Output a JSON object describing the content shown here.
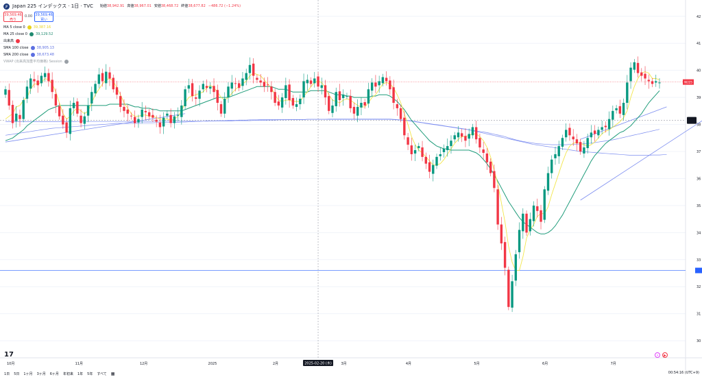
{
  "header": {
    "symbol_title": "Japan 225 インデックス · 1日 · TVC",
    "ohlc": [
      {
        "label": "始値",
        "value": "38,942.91"
      },
      {
        "label": "高値",
        "value": "38,967.01"
      },
      {
        "label": "安値",
        "value": "38,468.72"
      },
      {
        "label": "終値",
        "value": "38,677.82"
      },
      {
        "label": "",
        "value": "−486.72 (−1.24%)"
      }
    ],
    "sell_price": "39,569.46",
    "sell_label": "売り",
    "spread": "0.00",
    "buy_price": "39,569.46",
    "buy_label": "買い"
  },
  "indicators": [
    {
      "name": "MA 5 close 0",
      "value": "39,387.16",
      "color": "#e8d21d"
    },
    {
      "name": "MA 25 close 0",
      "value": "39,129.52",
      "color": "#1f8a70"
    },
    {
      "name": "出来高",
      "value": "",
      "color": "#f23645"
    },
    {
      "name": "SMA 100 close",
      "value": "38,905.13",
      "color": "#5b6ee1"
    },
    {
      "name": "SMA 200 close",
      "value": "38,673.48",
      "color": "#5b6ee1"
    },
    {
      "name": "VWAP (出来高加重平均価格) Session",
      "value": "",
      "color": "#9aa0a6"
    }
  ],
  "price_axis_labels": [
    "42",
    "41",
    "40",
    "39",
    "38",
    "37",
    "36",
    "35",
    "34",
    "33",
    "32",
    "31",
    "30"
  ],
  "time_axis_labels": [
    "10月",
    "11月",
    "12月",
    "2025",
    "2月",
    "3月",
    "4月",
    "5月",
    "6月",
    "7月"
  ],
  "crosshair_date": "2025-02-20 (木)",
  "current_price_badge": "NI225",
  "bottom_bar": {
    "ranges": [
      "1日",
      "5日",
      "1ヶ月",
      "3ヶ月",
      "6ヶ月",
      "年初来",
      "1年",
      "5年",
      "すべて"
    ],
    "clock": "00:54:16 (UTC+9)"
  },
  "tv_logo": "17",
  "colors": {
    "up": "#089981",
    "down": "#f23645",
    "ma5": "#f2e64b",
    "ma25": "#1f9c7a",
    "sma100": "#7b8cf0",
    "sma200": "#7b8cf0",
    "price_line": "#f23645",
    "hline": "#2962ff"
  },
  "chart_data": {
    "type": "candlestick",
    "y_axis_values": [
      42000,
      41000,
      40000,
      39000,
      38000,
      37000,
      36000,
      35000,
      34000,
      33000,
      32000,
      31000,
      30000
    ],
    "ylim": [
      29800,
      42400
    ],
    "current_price": 39569,
    "horizontal_line": 32600,
    "crosshair_price": 38150,
    "x_months": [
      "10月",
      "11月",
      "12月",
      "2025",
      "2月",
      "3月",
      "4月",
      "5月",
      "6月",
      "7月"
    ],
    "closes": [
      39300,
      38700,
      38050,
      38400,
      38200,
      38900,
      39400,
      39700,
      39600,
      39450,
      39800,
      39900,
      39600,
      39200,
      38700,
      38300,
      38000,
      37700,
      38600,
      38800,
      38400,
      38050,
      38300,
      38700,
      39200,
      39500,
      39850,
      39600,
      39950,
      39700,
      39300,
      39100,
      38650,
      38500,
      38400,
      38300,
      38050,
      38200,
      38550,
      38450,
      38300,
      38250,
      38100,
      37900,
      38250,
      38400,
      38050,
      38300,
      38350,
      38700,
      39300,
      39450,
      39050,
      38950,
      39250,
      39500,
      39350,
      39400,
      39200,
      38800,
      38400,
      38950,
      39400,
      39550,
      39500,
      39350,
      39700,
      39900,
      40200,
      39800,
      39650,
      39550,
      39400,
      39450,
      39200,
      38800,
      38700,
      39000,
      39450,
      38900,
      38700,
      38750,
      38950,
      39600,
      39650,
      39500,
      39700,
      39400,
      39450,
      39000,
      38500,
      38700,
      39200,
      38900,
      39100,
      39050,
      38600,
      38400,
      38650,
      38800,
      38700,
      39300,
      39550,
      39400,
      39600,
      39750,
      39600,
      39300,
      38800,
      38600,
      38200,
      37600,
      37250,
      36900,
      37050,
      37200,
      36800,
      36550,
      36250,
      36500,
      36800,
      36900,
      37100,
      37200,
      37400,
      37600,
      37700,
      37550,
      37400,
      37650,
      37900,
      37450,
      37150,
      36950,
      36600,
      36200,
      35650,
      34300,
      33600,
      32700,
      31250,
      32200,
      33200,
      34100,
      34700,
      34000,
      34500,
      35000,
      34800,
      34400,
      35600,
      36200,
      36700,
      36900,
      37200,
      37500,
      37800,
      37600,
      37450,
      37300,
      37000,
      37150,
      37500,
      37700,
      37650,
      37800,
      37900,
      37900,
      38200,
      38500,
      38600,
      38400,
      38800,
      39550,
      40100,
      40300,
      39900,
      39800,
      39700,
      39600,
      39500,
      39600,
      39550
    ],
    "ma5": [
      38200,
      38300,
      38400,
      38650,
      38700,
      38900,
      39000,
      39300,
      39500,
      39500,
      39550,
      39700,
      39650,
      39500,
      39200,
      38800,
      38400,
      38200,
      38300,
      38500,
      38600,
      38500,
      38400,
      38500,
      38800,
      39100,
      39300,
      39500,
      39650,
      39700,
      39600,
      39350,
      39100,
      38800,
      38600,
      38400,
      38300,
      38300,
      38350,
      38350,
      38300,
      38300,
      38250,
      38200,
      38200,
      38200,
      38150,
      38200,
      38300,
      38500,
      38800,
      39000,
      39050,
      39100,
      39150,
      39200,
      39350,
      39450,
      39350,
      39200,
      39000,
      38900,
      39000,
      39150,
      39300,
      39400,
      39500,
      39600,
      39800,
      39900,
      39850,
      39800,
      39650,
      39500,
      39350,
      39100,
      38900,
      38850,
      38900,
      38900,
      38850,
      38850,
      38850,
      39050,
      39200,
      39400,
      39550,
      39600,
      39550,
      39350,
      39100,
      38900,
      38850,
      38800,
      38900,
      38950,
      38900,
      38800,
      38700,
      38650,
      38650,
      38800,
      39000,
      39100,
      39300,
      39500,
      39550,
      39500,
      39350,
      39100,
      38800,
      38400,
      38000,
      37550,
      37250,
      37050,
      36950,
      36800,
      36650,
      36500,
      36500,
      36550,
      36700,
      36900,
      37100,
      37300,
      37450,
      37550,
      37550,
      37600,
      37650,
      37650,
      37550,
      37400,
      37150,
      36800,
      36300,
      35800,
      35100,
      34400,
      33500,
      32900,
      32600,
      32600,
      33100,
      33800,
      34100,
      34300,
      34600,
      34700,
      34700,
      34950,
      35400,
      35800,
      36200,
      36600,
      36950,
      37200,
      37300,
      37350,
      37300,
      37250,
      37200,
      37250,
      37350,
      37500,
      37650,
      37750,
      37800,
      37900,
      38000,
      38100,
      38250,
      38500,
      39000,
      39400,
      39700,
      39900,
      39950,
      39900,
      39700,
      39700,
      39650
    ],
    "ma25": [
      37400,
      37450,
      37500,
      37600,
      37700,
      37800,
      37950,
      38050,
      38150,
      38250,
      38350,
      38450,
      38550,
      38600,
      38650,
      38700,
      38700,
      38700,
      38700,
      38700,
      38700,
      38700,
      38700,
      38700,
      38700,
      38700,
      38700,
      38700,
      38700,
      38750,
      38750,
      38750,
      38750,
      38750,
      38750,
      38700,
      38650,
      38650,
      38600,
      38600,
      38600,
      38550,
      38550,
      38500,
      38500,
      38500,
      38500,
      38500,
      38500,
      38500,
      38550,
      38600,
      38650,
      38700,
      38750,
      38800,
      38850,
      38900,
      38950,
      39000,
      39000,
      39000,
      39000,
      39050,
      39100,
      39150,
      39200,
      39250,
      39300,
      39350,
      39400,
      39400,
      39400,
      39400,
      39400,
      39350,
      39300,
      39300,
      39300,
      39250,
      39200,
      39200,
      39200,
      39200,
      39200,
      39250,
      39250,
      39250,
      39250,
      39250,
      39200,
      39150,
      39100,
      39100,
      39100,
      39050,
      39050,
      39000,
      39000,
      39000,
      39000,
      39000,
      39050,
      39050,
      39100,
      39100,
      39100,
      39050,
      38950,
      38850,
      38700,
      38550,
      38350,
      38150,
      38000,
      37850,
      37700,
      37550,
      37400,
      37300,
      37200,
      37150,
      37100,
      37100,
      37050,
      37050,
      37050,
      37050,
      37050,
      37050,
      37000,
      36950,
      36850,
      36700,
      36550,
      36350,
      36150,
      35900,
      35650,
      35400,
      35150,
      34950,
      34750,
      34550,
      34400,
      34300,
      34200,
      34100,
      34000,
      33950,
      33950,
      34000,
      34100,
      34250,
      34450,
      34650,
      34900,
      35150,
      35400,
      35650,
      35900,
      36150,
      36400,
      36650,
      36850,
      37000,
      37150,
      37300,
      37400,
      37500,
      37600,
      37700,
      37750,
      37850,
      37950,
      38100,
      38250,
      38400,
      38600,
      38800,
      38950,
      39100,
      39250
    ],
    "sma100": [
      37600,
      37620,
      37640,
      37660,
      37680,
      37700,
      37720,
      37740,
      37760,
      37780,
      37800,
      37820,
      37840,
      37860,
      37870,
      37880,
      37890,
      37900,
      37910,
      37920,
      37930,
      37940,
      37950,
      37960,
      37970,
      37980,
      37990,
      38000,
      38010,
      38020,
      38030,
      38040,
      38040,
      38040,
      38040,
      38050,
      38050,
      38050,
      38060,
      38060,
      38060,
      38060,
      38070,
      38070,
      38070,
      38070,
      38080,
      38080,
      38080,
      38090,
      38090,
      38100,
      38100,
      38110,
      38110,
      38120,
      38120,
      38130,
      38130,
      38140,
      38140,
      38140,
      38150,
      38150,
      38150,
      38160,
      38160,
      38160,
      38170,
      38170,
      38170,
      38180,
      38180,
      38180,
      38180,
      38180,
      38180,
      38180,
      38180,
      38180,
      38180,
      38180,
      38180,
      38180,
      38190,
      38190,
      38190,
      38190,
      38190,
      38190,
      38190,
      38190,
      38190,
      38190,
      38190,
      38190,
      38190,
      38190,
      38190,
      38190,
      38190,
      38190,
      38190,
      38190,
      38190,
      38190,
      38190,
      38190,
      38180,
      38170,
      38160,
      38150,
      38140,
      38120,
      38100,
      38080,
      38060,
      38040,
      38020,
      38000,
      37980,
      37960,
      37940,
      37920,
      37900,
      37880,
      37860,
      37840,
      37820,
      37800,
      37780,
      37760,
      37740,
      37720,
      37700,
      37670,
      37640,
      37610,
      37580,
      37550,
      37510,
      37470,
      37430,
      37400,
      37370,
      37350,
      37330,
      37310,
      37290,
      37280,
      37270,
      37260,
      37250,
      37250,
      37250,
      37250,
      37250,
      37260,
      37260,
      37270,
      37280,
      37290,
      37300,
      37310,
      37330,
      37350,
      37370,
      37390,
      37410,
      37430,
      37460,
      37490,
      37520,
      37550,
      37580,
      37610,
      37640,
      37670,
      37700,
      37730,
      37760,
      37790,
      37820
    ],
    "sma200": [
      38100,
      38100,
      38100,
      38100,
      38100,
      38100,
      38100,
      38100,
      38100,
      38100,
      38100,
      38100,
      38100,
      38100,
      38100,
      38100,
      38100,
      38100,
      38100,
      38100,
      38110,
      38110,
      38110,
      38110,
      38110,
      38110,
      38110,
      38110,
      38110,
      38110,
      38110,
      38110,
      38110,
      38110,
      38110,
      38110,
      38110,
      38110,
      38110,
      38110,
      38110,
      38110,
      38120,
      38120,
      38120,
      38120,
      38120,
      38120,
      38120,
      38120,
      38120,
      38120,
      38120,
      38120,
      38120,
      38120,
      38130,
      38130,
      38130,
      38130,
      38130,
      38130,
      38130,
      38130,
      38140,
      38140,
      38140,
      38140,
      38140,
      38150,
      38150,
      38150,
      38150,
      38160,
      38160,
      38160,
      38170,
      38170,
      38170,
      38180,
      38180,
      38180,
      38180,
      38180,
      38190,
      38190,
      38190,
      38190,
      38190,
      38190,
      38200,
      38200,
      38200,
      38200,
      38200,
      38200,
      38200,
      38200,
      38200,
      38200,
      38200,
      38200,
      38200,
      38200,
      38200,
      38200,
      38200,
      38200,
      38190,
      38180,
      38170,
      38160,
      38150,
      38130,
      38110,
      38090,
      38070,
      38050,
      38030,
      38010,
      37990,
      37970,
      37950,
      37930,
      37910,
      37890,
      37870,
      37850,
      37830,
      37800,
      37770,
      37740,
      37710,
      37680,
      37650,
      37620,
      37590,
      37560,
      37530,
      37500,
      37470,
      37440,
      37410,
      37380,
      37350,
      37320,
      37290,
      37260,
      37240,
      37220,
      37200,
      37180,
      37160,
      37140,
      37120,
      37100,
      37080,
      37060,
      37040,
      37020,
      37000,
      36990,
      36980,
      36970,
      36960,
      36950,
      36940,
      36930,
      36920,
      36910,
      36900,
      36890,
      36880,
      36870,
      36860,
      36860,
      36860,
      36860,
      36860,
      36860,
      36870,
      36870,
      36870,
      36880,
      36880
    ],
    "trendline_lines": [
      {
        "from": [
          0,
          37350
        ],
        "to": [
          50,
          38400
        ]
      },
      {
        "from": [
          160,
          35200
        ],
        "to": [
          194,
          38150
        ]
      },
      {
        "from": [
          160,
          37450
        ],
        "to": [
          184,
          38650
        ]
      }
    ]
  }
}
